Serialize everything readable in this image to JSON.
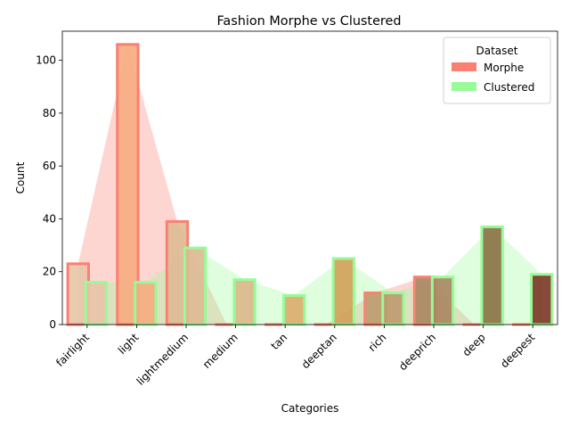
{
  "chart_data": {
    "type": "bar",
    "title": "Fashion Morphe vs Clustered",
    "xlabel": "Categories",
    "ylabel": "Count",
    "ylim": [
      0,
      111
    ],
    "yticks": [
      0,
      20,
      40,
      60,
      80,
      100
    ],
    "grid": false,
    "categories": [
      "fairlight",
      "light",
      "lightmedium",
      "medium",
      "tan",
      "deeptan",
      "rich",
      "deeprich",
      "deep",
      "deepest"
    ],
    "series": [
      {
        "name": "Morphe",
        "values": [
          23,
          106,
          39,
          0,
          0,
          0,
          12,
          18,
          0,
          0
        ],
        "color": "#fa8072"
      },
      {
        "name": "Clustered",
        "values": [
          16,
          16,
          29,
          17,
          11,
          25,
          12,
          18,
          37,
          19
        ],
        "color": "#98fb98"
      }
    ],
    "bar_fill_colors": [
      "#e8c4a8",
      "#f6ac80",
      "#deba94",
      "#dbb78a",
      "#dcac6c",
      "#d0a058",
      "#be9a6e",
      "#a88660",
      "#8a7044",
      "#7a3522"
    ],
    "legend": {
      "title": "Dataset",
      "position": "top-right"
    }
  }
}
